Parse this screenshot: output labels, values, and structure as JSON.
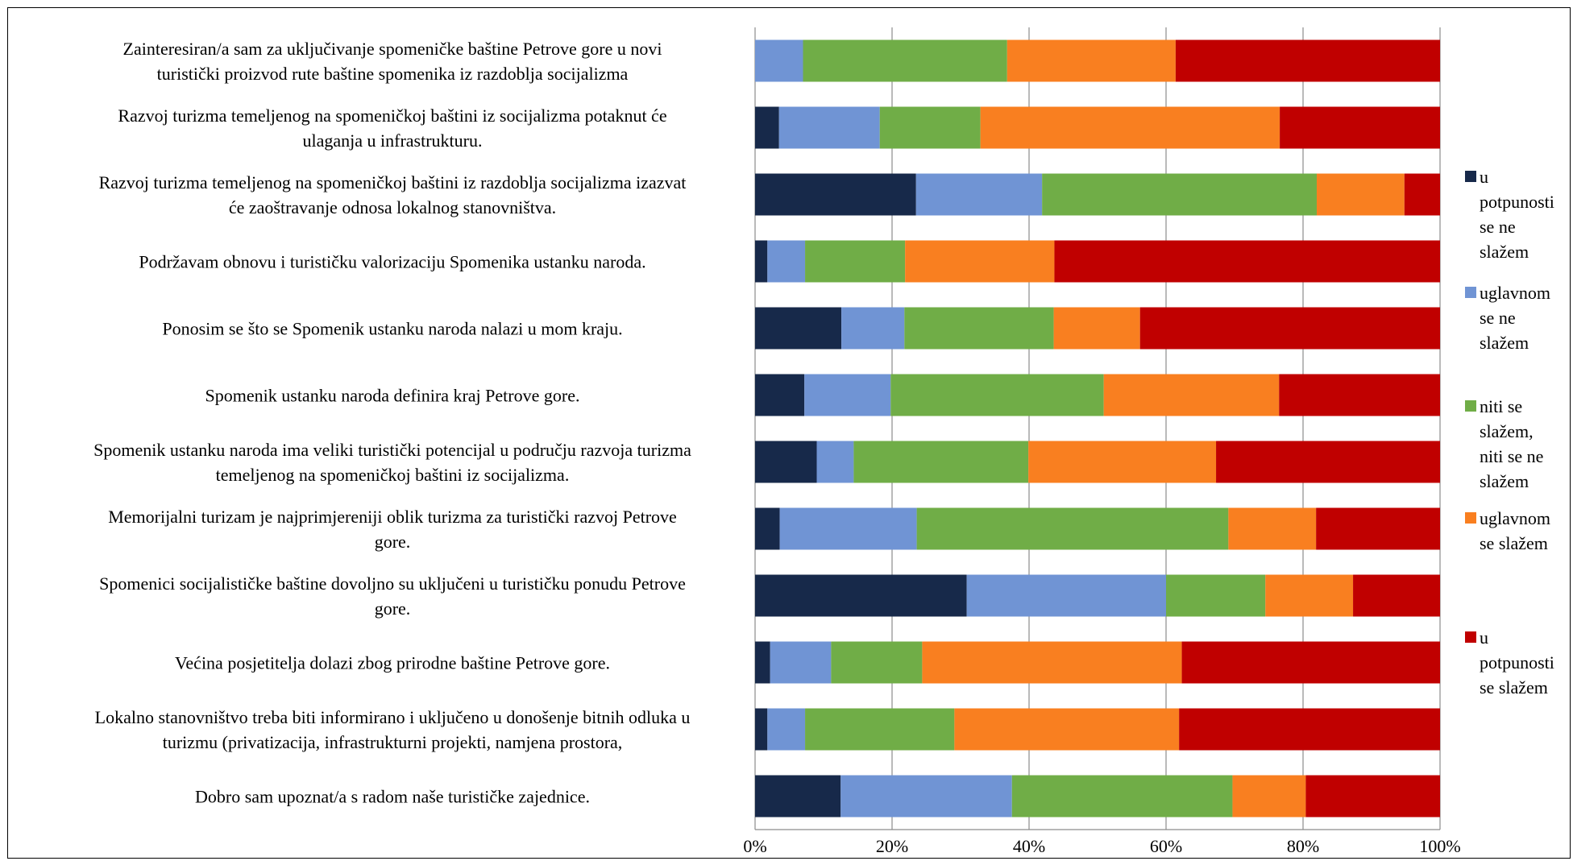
{
  "chart_data": {
    "type": "bar",
    "orientation": "horizontal",
    "stacked": "percent",
    "categories": [
      [
        "Zainteresiran/a sam za uključivanje spomeničke baštine Petrove gore u novi",
        "turistički proizvod rute baštine spomenika iz razdoblja socijalizma"
      ],
      [
        "Razvoj turizma temeljenog na spomeničkoj baštini iz socijalizma potaknut će",
        "ulaganja u infrastrukturu."
      ],
      [
        "Razvoj turizma temeljenog na spomeničkoj baštini iz razdoblja socijalizma izazvat",
        "će zaoštravanje odnosa lokalnog stanovništva."
      ],
      [
        "Podržavam obnovu i turističku valorizaciju Spomenika ustanku naroda."
      ],
      [
        "Ponosim se što se Spomenik ustanku naroda nalazi u mom kraju."
      ],
      [
        "Spomenik ustanku naroda definira kraj Petrove gore."
      ],
      [
        "Spomenik ustanku naroda ima veliki turistički potencijal u području razvoja turizma",
        "temeljenog na spomeničkoj baštini iz socijalizma."
      ],
      [
        "Memorijalni turizam je najprimjereniji oblik turizma za turistički razvoj Petrove",
        "gore."
      ],
      [
        "Spomenici socijalističke baštine dovoljno su uključeni u turističku ponudu Petrove",
        "gore."
      ],
      [
        "Većina posjetitelja dolazi zbog prirodne baštine Petrove gore."
      ],
      [
        "Lokalno stanovništvo treba biti informirano i uključeno u donošenje bitnih odluka u",
        "turizmu (privatizacija, infrastrukturni projekti, namjena prostora,"
      ],
      [
        "Dobro sam upoznat/a s radom naše turističke zajednice."
      ]
    ],
    "series": [
      {
        "name": [
          "u",
          "potpunosti",
          "se ne",
          "slažem"
        ],
        "color": "#17294a",
        "values": [
          0,
          3.5,
          23.5,
          1.8,
          12.6,
          7.2,
          9.0,
          3.6,
          30.9,
          2.2,
          1.8,
          12.5
        ]
      },
      {
        "name": [
          "uglavnom",
          "se ne",
          "slažem"
        ],
        "color": "#7094d4",
        "values": [
          7.0,
          14.7,
          18.4,
          5.5,
          9.2,
          12.6,
          5.4,
          20.0,
          29.1,
          8.9,
          5.5,
          25.0
        ]
      },
      {
        "name": [
          "niti se",
          "slažem,",
          "niti se ne",
          "slažem"
        ],
        "color": "#70ad47",
        "values": [
          29.8,
          14.7,
          40.1,
          14.6,
          21.8,
          31.1,
          25.5,
          45.5,
          14.5,
          13.3,
          21.8,
          32.2
        ]
      },
      {
        "name": [
          "uglavnom",
          "se slažem"
        ],
        "color": "#f97f20",
        "values": [
          24.6,
          43.7,
          12.8,
          21.8,
          12.6,
          25.6,
          27.4,
          12.8,
          12.8,
          37.9,
          32.8,
          10.7
        ]
      },
      {
        "name": [
          "u",
          "potpunosti",
          "se slažem"
        ],
        "color": "#c00000",
        "values": [
          38.6,
          23.4,
          5.2,
          56.3,
          43.8,
          23.5,
          32.7,
          18.1,
          12.7,
          37.7,
          38.1,
          19.6
        ]
      }
    ],
    "xlim": [
      0,
      100
    ],
    "x_ticks": [
      "0%",
      "20%",
      "40%",
      "60%",
      "80%",
      "100%"
    ],
    "grid": true,
    "legend": "right"
  }
}
